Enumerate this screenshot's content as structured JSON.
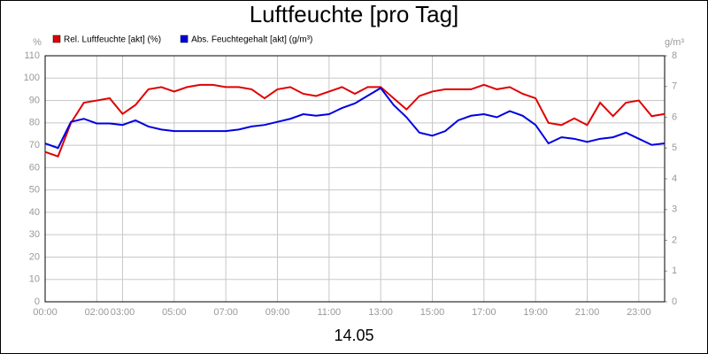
{
  "chart_data": {
    "type": "line",
    "title": "Luftfeuchte [pro Tag]",
    "xlabel": "14.05",
    "ylabel": "%",
    "y2label": "g/m³",
    "x": [
      0,
      0.5,
      1,
      1.5,
      2,
      2.5,
      3,
      3.5,
      4,
      4.5,
      5,
      5.5,
      6,
      6.5,
      7,
      7.5,
      8,
      8.5,
      9,
      9.5,
      10,
      10.5,
      11,
      11.5,
      12,
      12.5,
      13,
      13.5,
      14,
      14.5,
      15,
      15.5,
      16,
      16.5,
      17,
      17.5,
      18,
      18.5,
      19,
      19.5,
      20,
      20.5,
      21,
      21.5,
      22,
      22.5,
      23,
      23.5,
      24
    ],
    "series": [
      {
        "name": "Rel. Luftfeuchte [akt] (%)",
        "color": "#e00000",
        "values": [
          67,
          65,
          80,
          89,
          90,
          91,
          84,
          88,
          95,
          96,
          94,
          96,
          97,
          97,
          96,
          96,
          95,
          91,
          95,
          96,
          93,
          92,
          94,
          96,
          93,
          96,
          96,
          91,
          86,
          92,
          94,
          95,
          95,
          95,
          97,
          95,
          96,
          93,
          91,
          80,
          79,
          82,
          79,
          89,
          83,
          89,
          90,
          83,
          84
        ]
      },
      {
        "name": "Abs. Feuchtegehalt [akt] (g/m³)",
        "color": "#0000e0",
        "axis": "y2",
        "values": [
          5.15,
          5.0,
          5.85,
          5.95,
          5.8,
          5.8,
          5.75,
          5.9,
          5.7,
          5.6,
          5.55,
          5.55,
          5.55,
          5.55,
          5.55,
          5.6,
          5.7,
          5.75,
          5.85,
          5.95,
          6.1,
          6.05,
          6.1,
          6.3,
          6.45,
          6.7,
          6.95,
          6.4,
          6.0,
          5.5,
          5.4,
          5.55,
          5.9,
          6.05,
          6.1,
          6.0,
          6.2,
          6.05,
          5.75,
          5.15,
          5.35,
          5.3,
          5.2,
          5.3,
          5.35,
          5.5,
          5.3,
          5.1,
          5.15
        ]
      }
    ],
    "xlim": [
      0,
      24
    ],
    "xticks": [
      {
        "value": 0,
        "label": "00:00"
      },
      {
        "value": 2,
        "label": "02:00"
      },
      {
        "value": 3,
        "label": "03:00"
      },
      {
        "value": 5,
        "label": "05:00"
      },
      {
        "value": 7,
        "label": "07:00"
      },
      {
        "value": 9,
        "label": "09:00"
      },
      {
        "value": 11,
        "label": "11:00"
      },
      {
        "value": 13,
        "label": "13:00"
      },
      {
        "value": 15,
        "label": "15:00"
      },
      {
        "value": 17,
        "label": "17:00"
      },
      {
        "value": 19,
        "label": "19:00"
      },
      {
        "value": 21,
        "label": "21:00"
      },
      {
        "value": 23,
        "label": "23:00"
      }
    ],
    "ylim": [
      0,
      110
    ],
    "yticks": [
      0,
      10,
      20,
      30,
      40,
      50,
      60,
      70,
      80,
      90,
      100,
      110
    ],
    "y2lim": [
      0,
      8
    ],
    "y2ticks": [
      0,
      1,
      2,
      3,
      4,
      5,
      6,
      7,
      8
    ],
    "grid": true
  }
}
